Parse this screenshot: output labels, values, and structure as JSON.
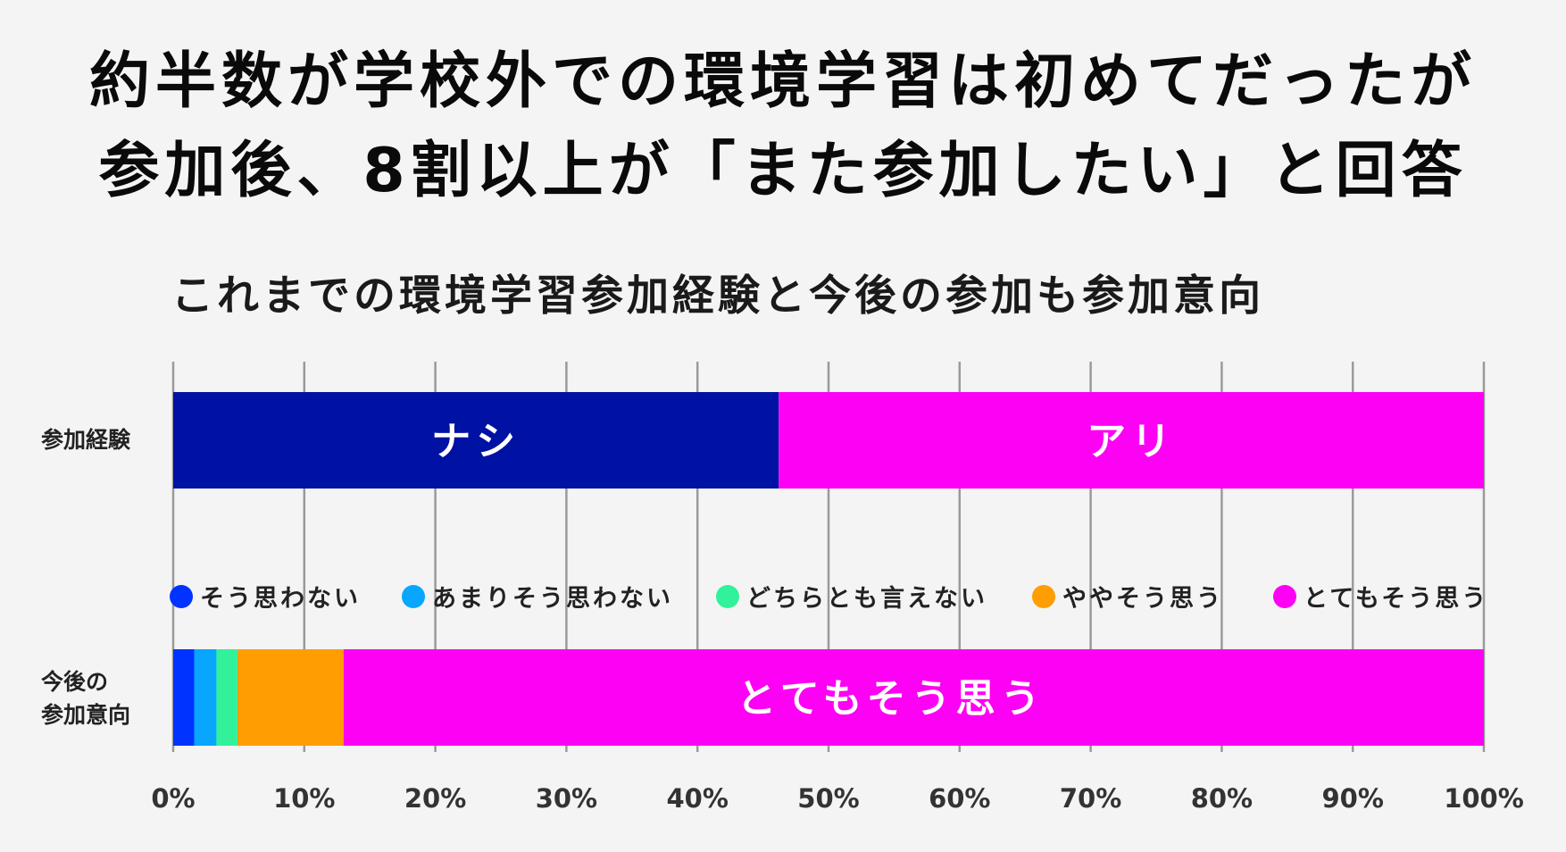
{
  "headline": {
    "line1": "約半数が学校外での環境学習は初めてだったが",
    "line2": "参加後、8割以上が「また参加したい」と回答"
  },
  "chart_data": {
    "type": "bar",
    "orientation": "horizontal-stacked-100",
    "title": "これまでの環境学習参加経験と今後の参加も参加意向",
    "xlim": [
      0,
      100
    ],
    "xticks": [
      "0%",
      "10%",
      "20%",
      "30%",
      "40%",
      "50%",
      "60%",
      "70%",
      "80%",
      "90%",
      "100%"
    ],
    "grid": true,
    "rows": [
      {
        "name": "参加経験",
        "segments": [
          {
            "label": "ナシ",
            "value": 46.2,
            "color": "#0012a3",
            "show_label": true
          },
          {
            "label": "アリ",
            "value": 53.8,
            "color": "#fd01f4",
            "show_label": true
          }
        ]
      },
      {
        "name": "今後の参加意向",
        "name_lines": [
          "今後の",
          "参加意向"
        ],
        "segments": [
          {
            "label": "そう思わない",
            "value": 1.6,
            "color": "#0033ff",
            "show_label": false
          },
          {
            "label": "あまりそう思わない",
            "value": 1.7,
            "color": "#08a6ff",
            "show_label": false
          },
          {
            "label": "どちらとも言えない",
            "value": 1.6,
            "color": "#31f29a",
            "show_label": false
          },
          {
            "label": "ややそう思う",
            "value": 8.1,
            "color": "#ff9d02",
            "show_label": false
          },
          {
            "label": "とてもそう思う",
            "value": 87.0,
            "color": "#fd01f4",
            "show_label": true
          }
        ]
      }
    ],
    "legend": [
      {
        "label": "そう思わない",
        "color": "#0033ff"
      },
      {
        "label": "あまりそう思わない",
        "color": "#08a6ff"
      },
      {
        "label": "どちらとも言えない",
        "color": "#31f29a"
      },
      {
        "label": "ややそう思う",
        "color": "#ff9d02"
      },
      {
        "label": "とてもそう思う",
        "color": "#fd01f4"
      }
    ],
    "legend_placement": "above second bar"
  }
}
